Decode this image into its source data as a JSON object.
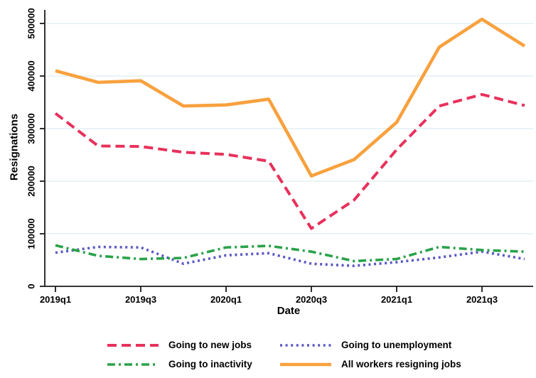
{
  "chart_data": {
    "type": "line",
    "x": [
      "2019q1",
      "2019q2",
      "2019q3",
      "2019q4",
      "2020q1",
      "2020q2",
      "2020q3",
      "2020q4",
      "2021q1",
      "2021q2",
      "2021q3",
      "2021q4"
    ],
    "xtick_labels": [
      "2019q1",
      "2019q3",
      "2020q1",
      "2020q3",
      "2021q1",
      "2021q3"
    ],
    "yticks": [
      0,
      100000,
      200000,
      300000,
      400000,
      500000
    ],
    "ytick_labels": [
      "0",
      "100000",
      "200000",
      "300000",
      "400000",
      "500000"
    ],
    "ylim": [
      0,
      525000
    ],
    "xlabel": "Date",
    "ylabel": "Resignations",
    "grid": "horizontal",
    "legend_position": "bottom",
    "gridline_color": "#ddedf2",
    "axis_color": "#1a1a1a",
    "series": [
      {
        "name": "Going to new jobs",
        "color": "#e8315b",
        "style": "dashed",
        "values": [
          329000,
          267000,
          266000,
          255000,
          251000,
          238000,
          110000,
          164000,
          260000,
          343000,
          365000,
          344000
        ]
      },
      {
        "name": "Going to unemployment",
        "color": "#5a58c2",
        "style": "dotted",
        "values": [
          64000,
          75000,
          74000,
          43000,
          59000,
          63000,
          43000,
          39000,
          46000,
          55000,
          66000,
          52000
        ]
      },
      {
        "name": "Going to inactivity",
        "color": "#2aa24a",
        "style": "dashdot",
        "values": [
          78000,
          58000,
          52000,
          54000,
          74000,
          77000,
          66000,
          48000,
          52000,
          75000,
          69000,
          66000
        ]
      },
      {
        "name": "All workers resigning jobs",
        "color": "#f8a13e",
        "style": "solid",
        "values": [
          410000,
          388000,
          391000,
          343000,
          345000,
          356000,
          210000,
          241000,
          312000,
          455000,
          508000,
          457000
        ]
      }
    ]
  }
}
